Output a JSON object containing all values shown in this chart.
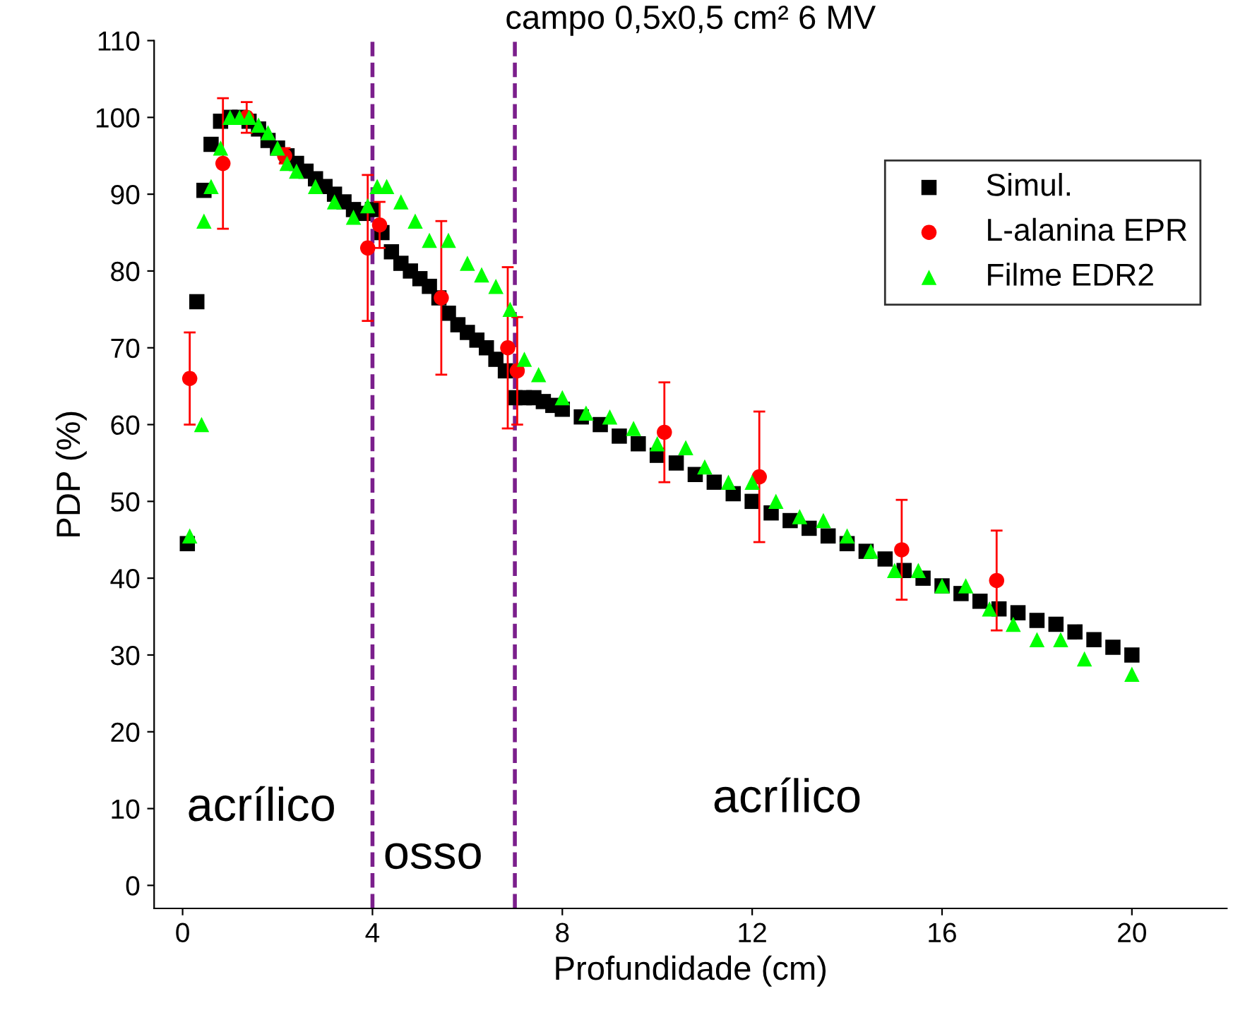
{
  "chart_data": {
    "type": "scatter",
    "title": "campo 0,5x0,5 cm² 6 MV",
    "xlabel": "Profundidade (cm)",
    "ylabel": "PDP (%)",
    "xlim": [
      -0.6,
      22
    ],
    "ylim": [
      -3,
      110
    ],
    "xticks": [
      0,
      4,
      8,
      12,
      16,
      20
    ],
    "yticks": [
      0,
      10,
      20,
      30,
      40,
      50,
      60,
      70,
      80,
      90,
      100,
      110
    ],
    "grid": false,
    "legend": "top right",
    "ref_lines": [
      {
        "axis": "x",
        "value": 4,
        "color": "#7b1f8c",
        "line_style": "dashed"
      },
      {
        "axis": "x",
        "value": 7,
        "color": "#7b1f8c",
        "line_style": "dashed"
      }
    ],
    "annotations": [
      "acrílico",
      "osso",
      "acrílico"
    ],
    "series": [
      {
        "name": "Simul.",
        "color": "#000000",
        "marker": "square",
        "x": [
          0.1,
          0.3,
          0.45,
          0.6,
          0.8,
          1.0,
          1.2,
          1.4,
          1.6,
          1.8,
          2.0,
          2.2,
          2.4,
          2.6,
          2.8,
          3.0,
          3.2,
          3.4,
          3.6,
          3.8,
          4.0,
          4.2,
          4.4,
          4.6,
          4.8,
          5.0,
          5.2,
          5.4,
          5.6,
          5.8,
          6.0,
          6.2,
          6.4,
          6.6,
          6.8,
          7.0,
          7.2,
          7.4,
          7.6,
          7.8,
          8.0,
          8.4,
          8.8,
          9.2,
          9.6,
          10.0,
          10.4,
          10.8,
          11.2,
          11.6,
          12.0,
          12.4,
          12.8,
          13.2,
          13.6,
          14.0,
          14.4,
          14.8,
          15.2,
          15.6,
          16.0,
          16.4,
          16.8,
          17.2,
          17.6,
          18.0,
          18.4,
          18.8,
          19.2,
          19.6,
          20.0
        ],
        "values": [
          44.5,
          76,
          90.5,
          96.5,
          99.5,
          100,
          100,
          99.5,
          98.5,
          97,
          96,
          95,
          94,
          93,
          92,
          91,
          90,
          89,
          88,
          87.5,
          88,
          85,
          82.5,
          81,
          80,
          79,
          78,
          76.5,
          74.5,
          73,
          72,
          71,
          70,
          68.5,
          67,
          63.5,
          63.5,
          63.5,
          63,
          62.5,
          62,
          61,
          60,
          58.5,
          57.5,
          56,
          55,
          53.5,
          52.5,
          51,
          50,
          48.5,
          47.5,
          46.5,
          45.5,
          44.5,
          43.5,
          42.5,
          41,
          40,
          39,
          38,
          37,
          36,
          35.5,
          34.5,
          34,
          33,
          32,
          31,
          30
        ]
      },
      {
        "name": "L-alanina EPR",
        "color": "#ff0000",
        "marker": "circle",
        "x": [
          0.15,
          0.85,
          1.35,
          2.15,
          3.9,
          4.15,
          5.45,
          6.85,
          7.05,
          10.15,
          12.15,
          15.15,
          17.15
        ],
        "values": [
          66,
          94,
          100,
          95,
          83,
          86,
          76.5,
          70,
          67,
          59,
          53.2,
          43.7,
          39.7
        ],
        "errors": [
          6,
          8.5,
          2,
          1,
          9.5,
          3,
          10,
          10.5,
          7,
          6.5,
          8.5,
          6.5,
          6.5
        ]
      },
      {
        "name": "Filme EDR2",
        "color": "#00ff00",
        "marker": "triangle",
        "x": [
          0.15,
          0.4,
          0.45,
          0.6,
          0.8,
          1.0,
          1.2,
          1.4,
          1.6,
          1.8,
          2.0,
          2.2,
          2.4,
          2.8,
          3.2,
          3.6,
          3.9,
          4.1,
          4.3,
          4.6,
          4.9,
          5.2,
          5.6,
          6.0,
          6.3,
          6.6,
          6.9,
          7.2,
          7.5,
          8.0,
          8.5,
          9.0,
          9.5,
          10.0,
          10.6,
          11.0,
          11.5,
          12.0,
          12.5,
          13.0,
          13.5,
          14.0,
          14.5,
          15.0,
          15.5,
          16.0,
          16.5,
          17.0,
          17.5,
          18.0,
          18.5,
          19.0,
          20.0
        ],
        "values": [
          45.5,
          60,
          86.5,
          91,
          96,
          100,
          100,
          100,
          99,
          98,
          96,
          94,
          93,
          91,
          89,
          87,
          88.5,
          91,
          91,
          89,
          86.5,
          84,
          84,
          81,
          79.5,
          78,
          75,
          68.5,
          66.5,
          63.5,
          61.5,
          61,
          59.5,
          57.5,
          57,
          54.5,
          52.5,
          52.5,
          50,
          48,
          47.5,
          45.5,
          43.5,
          41,
          41,
          39,
          39,
          36,
          34,
          32,
          32,
          29.5,
          27.5
        ]
      }
    ]
  }
}
